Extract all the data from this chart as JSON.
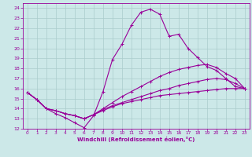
{
  "xlabel": "Windchill (Refroidissement éolien,°C)",
  "background_color": "#cce8e8",
  "grid_color": "#aacccc",
  "line_color": "#990099",
  "xlim": [
    -0.5,
    23.5
  ],
  "ylim": [
    12,
    24.5
  ],
  "xticks": [
    0,
    1,
    2,
    3,
    4,
    5,
    6,
    7,
    8,
    9,
    10,
    11,
    12,
    13,
    14,
    15,
    16,
    17,
    18,
    19,
    20,
    21,
    22,
    23
  ],
  "yticks": [
    12,
    13,
    14,
    15,
    16,
    17,
    18,
    19,
    20,
    21,
    22,
    23,
    24
  ],
  "series": [
    {
      "x": [
        0,
        1,
        2,
        3,
        4,
        5,
        6,
        7,
        8,
        9,
        10,
        11,
        12,
        13,
        14,
        15,
        16,
        17,
        18,
        19,
        20,
        21,
        22,
        23
      ],
      "y": [
        15.6,
        14.9,
        14.0,
        13.5,
        13.1,
        12.6,
        12.1,
        13.3,
        15.7,
        18.9,
        20.4,
        22.3,
        23.6,
        23.9,
        23.4,
        21.2,
        21.4,
        20.0,
        19.1,
        18.2,
        17.8,
        17.0,
        16.2,
        16.0
      ]
    },
    {
      "x": [
        0,
        1,
        2,
        3,
        4,
        5,
        6,
        7,
        8,
        9,
        10,
        11,
        12,
        13,
        14,
        15,
        16,
        17,
        18,
        19,
        20,
        21,
        22,
        23
      ],
      "y": [
        15.6,
        14.9,
        14.0,
        13.8,
        13.5,
        13.3,
        13.0,
        13.4,
        14.0,
        14.6,
        15.2,
        15.7,
        16.2,
        16.7,
        17.2,
        17.6,
        17.9,
        18.1,
        18.3,
        18.4,
        18.1,
        17.5,
        17.0,
        16.0
      ]
    },
    {
      "x": [
        0,
        1,
        2,
        3,
        4,
        5,
        6,
        7,
        8,
        9,
        10,
        11,
        12,
        13,
        14,
        15,
        16,
        17,
        18,
        19,
        20,
        21,
        22,
        23
      ],
      "y": [
        15.6,
        14.9,
        14.0,
        13.8,
        13.5,
        13.3,
        13.0,
        13.4,
        13.9,
        14.3,
        14.6,
        14.9,
        15.2,
        15.5,
        15.8,
        16.0,
        16.3,
        16.5,
        16.7,
        16.9,
        17.0,
        16.9,
        16.5,
        16.0
      ]
    },
    {
      "x": [
        0,
        1,
        2,
        3,
        4,
        5,
        6,
        7,
        8,
        9,
        10,
        11,
        12,
        13,
        14,
        15,
        16,
        17,
        18,
        19,
        20,
        21,
        22,
        23
      ],
      "y": [
        15.6,
        14.9,
        14.0,
        13.8,
        13.5,
        13.3,
        13.0,
        13.4,
        13.8,
        14.2,
        14.5,
        14.7,
        14.9,
        15.1,
        15.3,
        15.4,
        15.5,
        15.6,
        15.7,
        15.8,
        15.9,
        16.0,
        16.0,
        16.0
      ]
    }
  ]
}
